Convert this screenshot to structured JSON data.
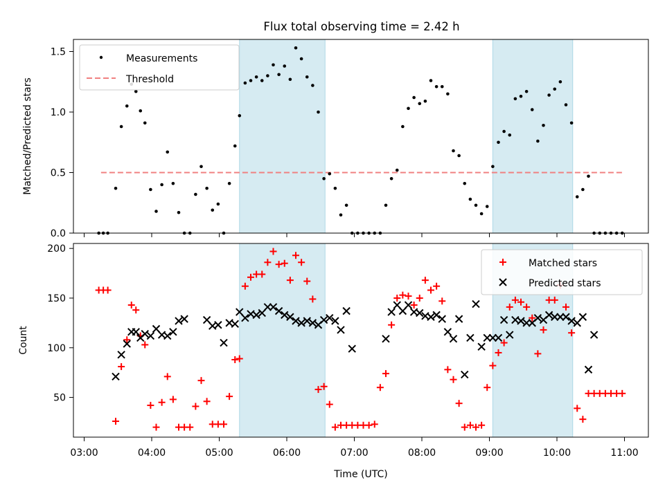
{
  "chart_data": [
    {
      "type": "scatter",
      "title": "Flux total observing time = 2.42 h",
      "ylabel": "Matched/Predicted stars",
      "xlabel": "",
      "ylim": [
        0,
        1.6
      ],
      "yticks": [
        "0.0",
        "0.5",
        "1.0",
        "1.5"
      ],
      "xlim": [
        "03:00",
        "11:00"
      ],
      "shaded_intervals": [
        [
          "05:18",
          "06:34"
        ],
        [
          "09:03",
          "10:14"
        ]
      ],
      "legend": {
        "placement": "top-left",
        "entries": [
          "Measurements",
          "Threshold"
        ]
      },
      "threshold": {
        "name": "Threshold",
        "value": 0.5,
        "x": [
          "03:15",
          "11:00"
        ]
      },
      "series": [
        {
          "name": "Measurements",
          "x": [
            "03:13",
            "03:17",
            "03:21",
            "03:28",
            "03:33",
            "03:38",
            "03:42",
            "03:46",
            "03:50",
            "03:54",
            "03:59",
            "04:04",
            "04:09",
            "04:14",
            "04:19",
            "04:24",
            "04:29",
            "04:34",
            "04:39",
            "04:44",
            "04:49",
            "04:54",
            "04:59",
            "05:04",
            "05:09",
            "05:14",
            "05:18",
            "05:23",
            "05:28",
            "05:33",
            "05:38",
            "05:43",
            "05:48",
            "05:53",
            "05:58",
            "06:03",
            "06:08",
            "06:13",
            "06:18",
            "06:23",
            "06:28",
            "06:33",
            "06:38",
            "06:43",
            "06:48",
            "06:53",
            "06:58",
            "07:03",
            "07:08",
            "07:13",
            "07:18",
            "07:23",
            "07:28",
            "07:33",
            "07:38",
            "07:43",
            "07:48",
            "07:53",
            "07:58",
            "08:03",
            "08:08",
            "08:13",
            "08:18",
            "08:23",
            "08:28",
            "08:33",
            "08:38",
            "08:43",
            "08:48",
            "08:53",
            "08:58",
            "09:03",
            "09:08",
            "09:13",
            "09:18",
            "09:23",
            "09:28",
            "09:33",
            "09:38",
            "09:43",
            "09:48",
            "09:53",
            "09:58",
            "10:03",
            "10:08",
            "10:13",
            "10:18",
            "10:23",
            "10:28",
            "10:33",
            "10:38",
            "10:43",
            "10:48",
            "10:53",
            "10:58"
          ],
          "values": [
            0,
            0,
            0,
            0.37,
            0.88,
            1.05,
            1.23,
            1.17,
            1.01,
            0.91,
            0.36,
            0.18,
            0.4,
            0.67,
            0.41,
            0.17,
            0,
            0,
            0.32,
            0.55,
            0.37,
            0.19,
            0.24,
            0,
            0.41,
            0.72,
            0.97,
            1.24,
            1.26,
            1.29,
            1.26,
            1.3,
            1.39,
            1.31,
            1.38,
            1.27,
            1.53,
            1.44,
            1.29,
            1.22,
            1.0,
            0.45,
            0.49,
            0.37,
            0.15,
            0.23,
            0,
            0,
            0,
            0,
            0,
            0,
            0.23,
            0.45,
            0.52,
            0.88,
            1.03,
            1.12,
            1.07,
            1.09,
            1.26,
            1.21,
            1.21,
            1.15,
            0.68,
            0.64,
            0.41,
            0.28,
            0.23,
            0.16,
            0.22,
            0.55,
            0.75,
            0.84,
            0.81,
            1.11,
            1.13,
            1.17,
            1.02,
            0.76,
            0.89,
            1.14,
            1.19,
            1.25,
            1.06,
            0.91,
            0.3,
            0.36,
            0.47,
            0,
            0,
            0,
            0,
            0,
            0
          ]
        }
      ]
    },
    {
      "type": "scatter",
      "title": "",
      "ylabel": "Count",
      "xlabel": "Time (UTC)",
      "ylim": [
        10,
        205
      ],
      "yticks": [
        "50",
        "100",
        "150",
        "200"
      ],
      "xlim": [
        "03:00",
        "11:00"
      ],
      "xticks": [
        "03:00",
        "04:00",
        "05:00",
        "06:00",
        "07:00",
        "08:00",
        "09:00",
        "10:00",
        "11:00"
      ],
      "shaded_intervals": [
        [
          "05:18",
          "06:34"
        ],
        [
          "09:03",
          "10:14"
        ]
      ],
      "legend": {
        "placement": "top-right",
        "entries": [
          "Matched stars",
          "Predicted stars"
        ]
      },
      "series": [
        {
          "name": "Matched stars",
          "x": [
            "03:13",
            "03:17",
            "03:21",
            "03:28",
            "03:33",
            "03:38",
            "03:42",
            "03:46",
            "03:50",
            "03:54",
            "03:59",
            "04:04",
            "04:09",
            "04:14",
            "04:19",
            "04:24",
            "04:29",
            "04:34",
            "04:39",
            "04:44",
            "04:49",
            "04:54",
            "04:59",
            "05:04",
            "05:09",
            "05:14",
            "05:18",
            "05:23",
            "05:28",
            "05:33",
            "05:38",
            "05:43",
            "05:48",
            "05:53",
            "05:58",
            "06:03",
            "06:08",
            "06:13",
            "06:18",
            "06:23",
            "06:28",
            "06:33",
            "06:38",
            "06:43",
            "06:48",
            "06:53",
            "06:58",
            "07:03",
            "07:08",
            "07:13",
            "07:18",
            "07:23",
            "07:28",
            "07:33",
            "07:38",
            "07:43",
            "07:48",
            "07:53",
            "07:58",
            "08:03",
            "08:08",
            "08:13",
            "08:18",
            "08:23",
            "08:28",
            "08:33",
            "08:38",
            "08:43",
            "08:48",
            "08:53",
            "08:58",
            "09:03",
            "09:08",
            "09:13",
            "09:18",
            "09:23",
            "09:28",
            "09:33",
            "09:38",
            "09:43",
            "09:48",
            "09:53",
            "09:58",
            "10:03",
            "10:08",
            "10:13",
            "10:18",
            "10:23",
            "10:28",
            "10:33",
            "10:38",
            "10:43",
            "10:48",
            "10:53",
            "10:58"
          ],
          "values": [
            158,
            158,
            158,
            26,
            81,
            108,
            143,
            138,
            112,
            103,
            42,
            20,
            45,
            71,
            48,
            20,
            20,
            20,
            41,
            67,
            46,
            23,
            23,
            23,
            51,
            88,
            89,
            162,
            171,
            174,
            174,
            186,
            197,
            184,
            185,
            168,
            193,
            186,
            167,
            149,
            58,
            61,
            43,
            20,
            22,
            22,
            22,
            22,
            22,
            22,
            23,
            60,
            74,
            123,
            150,
            153,
            152,
            143,
            150,
            168,
            158,
            162,
            147,
            78,
            68,
            44,
            20,
            22,
            20,
            22,
            60,
            82,
            95,
            105,
            141,
            148,
            146,
            141,
            130,
            94,
            118,
            148,
            148,
            163,
            141,
            115,
            39,
            28,
            54,
            54,
            54,
            54,
            54,
            54,
            54
          ]
        },
        {
          "name": "Predicted stars",
          "x": [
            "03:28",
            "03:33",
            "03:38",
            "03:42",
            "03:46",
            "03:50",
            "03:54",
            "03:59",
            "04:04",
            "04:09",
            "04:14",
            "04:19",
            "04:24",
            "04:29",
            "04:49",
            "04:54",
            "04:59",
            "05:04",
            "05:09",
            "05:14",
            "05:18",
            "05:23",
            "05:28",
            "05:33",
            "05:38",
            "05:43",
            "05:48",
            "05:53",
            "05:58",
            "06:03",
            "06:08",
            "06:13",
            "06:18",
            "06:23",
            "06:28",
            "06:33",
            "06:38",
            "06:43",
            "06:48",
            "06:53",
            "06:58",
            "07:28",
            "07:33",
            "07:38",
            "07:43",
            "07:48",
            "07:53",
            "07:58",
            "08:03",
            "08:08",
            "08:13",
            "08:18",
            "08:23",
            "08:28",
            "08:33",
            "08:38",
            "08:43",
            "08:48",
            "08:53",
            "08:58",
            "09:03",
            "09:08",
            "09:13",
            "09:18",
            "09:23",
            "09:28",
            "09:33",
            "09:38",
            "09:43",
            "09:48",
            "09:53",
            "09:58",
            "10:03",
            "10:08",
            "10:13",
            "10:18",
            "10:23",
            "10:28",
            "10:33"
          ],
          "values": [
            71,
            93,
            104,
            116,
            116,
            110,
            114,
            112,
            119,
            113,
            112,
            116,
            127,
            129,
            128,
            122,
            123,
            105,
            125,
            124,
            136,
            130,
            134,
            133,
            135,
            141,
            141,
            137,
            133,
            131,
            127,
            125,
            127,
            125,
            123,
            128,
            130,
            127,
            118,
            137,
            99,
            109,
            136,
            143,
            137,
            143,
            136,
            135,
            132,
            131,
            133,
            129,
            116,
            109,
            129,
            73,
            110,
            144,
            101,
            110,
            110,
            110,
            128,
            113,
            128,
            127,
            125,
            125,
            130,
            128,
            133,
            131,
            131,
            131,
            127,
            125,
            131,
            78,
            113
          ]
        }
      ]
    }
  ]
}
